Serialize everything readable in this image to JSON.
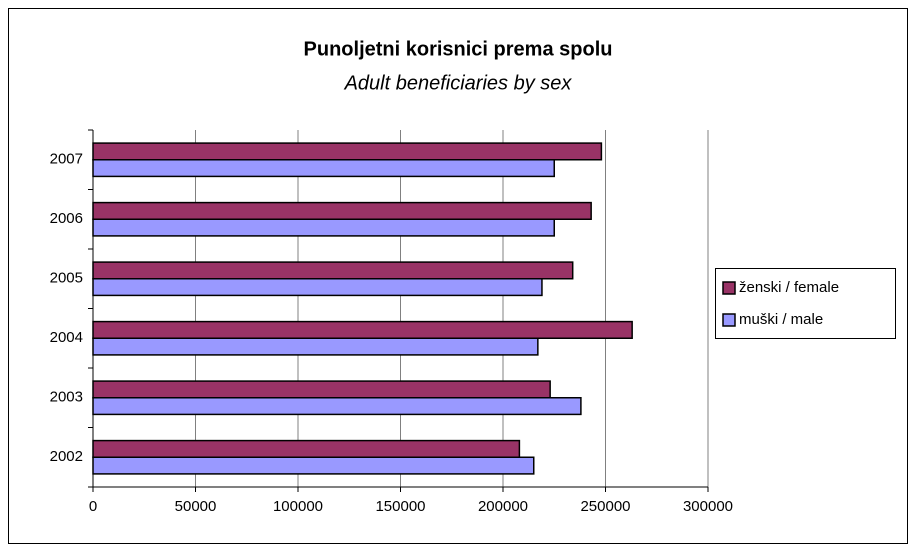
{
  "chart_data": {
    "type": "hbar",
    "title": "Punoljetni korisnici prema spolu",
    "subtitle": "Adult beneficiaries by sex",
    "categories": [
      "2002",
      "2003",
      "2004",
      "2005",
      "2006",
      "2007"
    ],
    "series": [
      {
        "name": "ženski / female",
        "color": "#993366",
        "values": [
          208000,
          223000,
          263000,
          234000,
          243000,
          248000
        ]
      },
      {
        "name": "muški / male",
        "color": "#9999ff",
        "values": [
          215000,
          238000,
          217000,
          219000,
          225000,
          225000
        ]
      }
    ],
    "xlim": [
      0,
      300000
    ],
    "xticks": [
      0,
      50000,
      100000,
      150000,
      200000,
      250000,
      300000
    ],
    "grid": true,
    "legend": "right"
  }
}
